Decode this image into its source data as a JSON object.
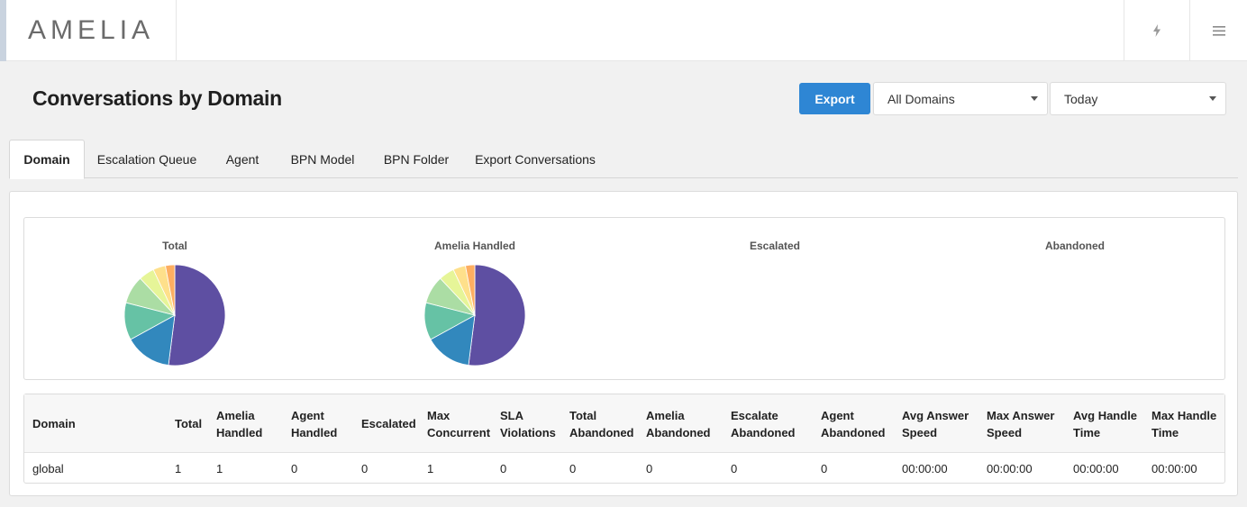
{
  "header": {
    "logo_text": "AMELIA",
    "bolt_icon": "bolt-icon",
    "menu_icon": "hamburger-menu-icon"
  },
  "page": {
    "title": "Conversations by Domain"
  },
  "toolbar": {
    "export_label": "Export",
    "domain_select": "All Domains",
    "date_select": "Today",
    "accent_color": "#2e86d4"
  },
  "tabs": [
    {
      "label": "Domain",
      "active": true
    },
    {
      "label": "Escalation Queue",
      "active": false
    },
    {
      "label": "Agent",
      "active": false
    },
    {
      "label": "BPN Model",
      "active": false
    },
    {
      "label": "BPN Folder",
      "active": false
    },
    {
      "label": "Export Conversations",
      "active": false
    }
  ],
  "charts": {
    "titles": [
      "Total",
      "Amelia Handled",
      "Escalated",
      "Abandoned"
    ]
  },
  "chart_data": [
    {
      "type": "pie",
      "title": "Total",
      "values": [
        52,
        15,
        12,
        9,
        5,
        4,
        3
      ],
      "colors": [
        "#5e4fa2",
        "#3288bd",
        "#66c2a5",
        "#abdda4",
        "#e6f598",
        "#fee08b",
        "#fdae61"
      ]
    },
    {
      "type": "pie",
      "title": "Amelia Handled",
      "values": [
        52,
        15,
        12,
        9,
        5,
        4,
        3
      ],
      "colors": [
        "#5e4fa2",
        "#3288bd",
        "#66c2a5",
        "#abdda4",
        "#e6f598",
        "#fee08b",
        "#fdae61"
      ]
    },
    {
      "type": "pie",
      "title": "Escalated",
      "values": []
    },
    {
      "type": "pie",
      "title": "Abandoned",
      "values": []
    }
  ],
  "table": {
    "headers": [
      "Domain",
      "Total",
      "Amelia Handled",
      "Agent Handled",
      "Escalated",
      "Max Concurrent",
      "SLA Violations",
      "Total Abandoned",
      "Amelia Abandoned",
      "Escalate Abandoned",
      "Agent Abandoned",
      "Avg Answer Speed",
      "Max Answer Speed",
      "Avg Handle Time",
      "Max Handle Time"
    ],
    "rows": [
      [
        "global",
        "1",
        "1",
        "0",
        "0",
        "1",
        "0",
        "0",
        "0",
        "0",
        "0",
        "00:00:00",
        "00:00:00",
        "00:00:00",
        "00:00:00"
      ]
    ]
  }
}
